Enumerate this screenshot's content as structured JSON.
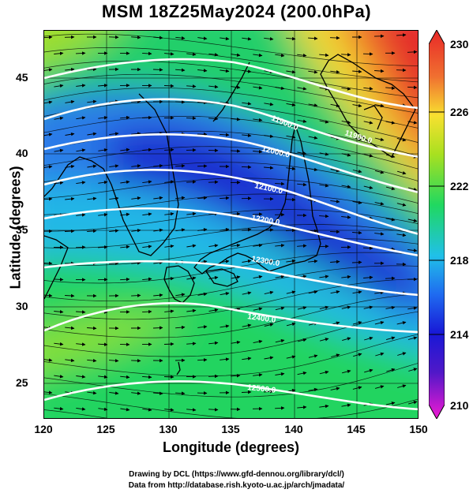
{
  "title": "MSM 18Z25May2024 (200.0hPa)",
  "axes": {
    "xlabel": "Longitude (degrees)",
    "ylabel": "Latitude  (degrees)",
    "xlim": [
      120,
      150
    ],
    "ylim": [
      22.5,
      48
    ],
    "xticks": [
      "120",
      "125",
      "130",
      "135",
      "140",
      "145",
      "150"
    ],
    "yticks": [
      "25",
      "30",
      "35",
      "40",
      "45"
    ]
  },
  "colorbar": {
    "min": 210,
    "max": 230,
    "ticks": [
      "230",
      "226",
      "222",
      "218",
      "214",
      "210"
    ],
    "colors": [
      "#f01ad2",
      "#1818d6",
      "#1f6bf0",
      "#20c0e8",
      "#20d860",
      "#a8e020",
      "#f8e030",
      "#f07030",
      "#e82828"
    ]
  },
  "contours": [
    {
      "label": "11900.0",
      "lon": 141
    },
    {
      "label": "12000.0",
      "lon": 140
    },
    {
      "label": "12100.0",
      "lon": 139.5
    },
    {
      "label": "12200.0",
      "lon": 139
    },
    {
      "label": "12300.0",
      "lon": 138.5
    },
    {
      "label": "12400.0",
      "lon": 137.5
    },
    {
      "label": "12500.0",
      "lon": 138
    }
  ],
  "credits": {
    "line1": "Drawing by DCL (https://www.gfd-dennou.org/library/dcl/)",
    "line2": "Data from http://database.rish.kyoto-u.ac.jp/arch/jmadata/"
  }
}
